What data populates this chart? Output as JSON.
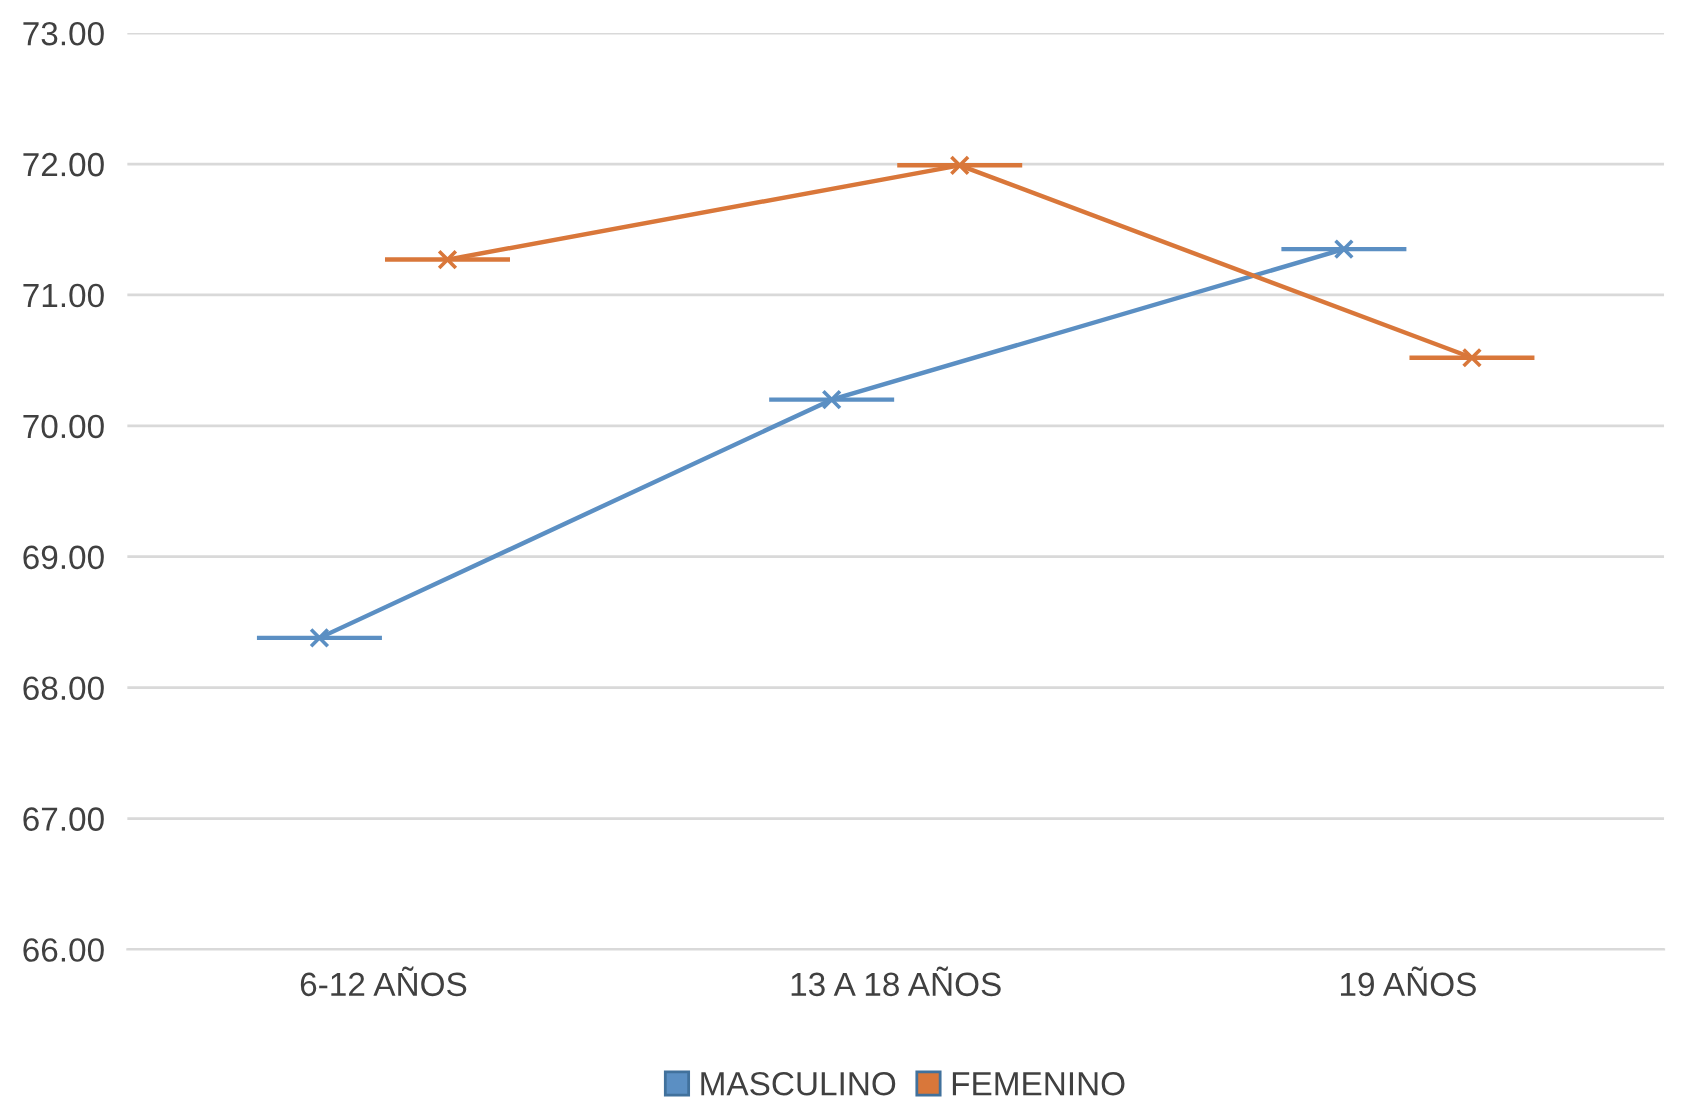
{
  "chart_data": {
    "type": "line",
    "categories": [
      "6-12 AÑOS",
      "13 A 18 AÑOS",
      "19 AÑOS"
    ],
    "series": [
      {
        "name": "MASCULINO",
        "color": "#5b8fc3",
        "values": [
          68.38,
          70.2,
          71.35
        ]
      },
      {
        "name": "FEMENINO",
        "color": "#d9773a",
        "values": [
          71.27,
          71.99,
          70.52
        ]
      }
    ],
    "ylim": [
      66,
      73
    ],
    "yticks": [
      {
        "value": 66,
        "label": "66.00"
      },
      {
        "value": 67,
        "label": "67.00"
      },
      {
        "value": 68,
        "label": "68.00"
      },
      {
        "value": 69,
        "label": "69.00"
      },
      {
        "value": 70,
        "label": "70.00"
      },
      {
        "value": 71,
        "label": "71.00"
      },
      {
        "value": 72,
        "label": "72.00"
      },
      {
        "value": 73,
        "label": "73.00"
      }
    ],
    "grid": "y",
    "legend": "bottom",
    "marker": "cross",
    "line_style": "solid"
  }
}
